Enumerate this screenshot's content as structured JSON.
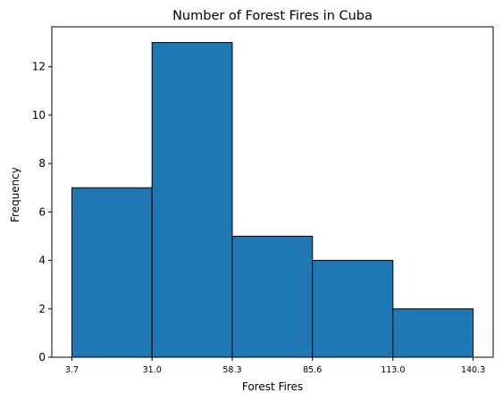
{
  "chart_data": {
    "type": "bar",
    "subtype": "histogram",
    "title": "Number of Forest Fires in Cuba",
    "xlabel": "Forest Fires",
    "ylabel": "Frequency",
    "bin_edges": [
      3.7,
      31.0,
      58.3,
      85.6,
      113.0,
      140.3
    ],
    "bin_edge_labels": [
      "3.7",
      "31.0",
      "58.3",
      "85.6",
      "113.0",
      "140.3"
    ],
    "values": [
      7,
      13,
      5,
      4,
      2
    ],
    "ylim": [
      0,
      13.65
    ],
    "yticks": [
      0,
      2,
      4,
      6,
      8,
      10,
      12
    ],
    "grid": false,
    "colors": {
      "bar_fill": "#1f77b4",
      "bar_edge": "#000000"
    }
  }
}
